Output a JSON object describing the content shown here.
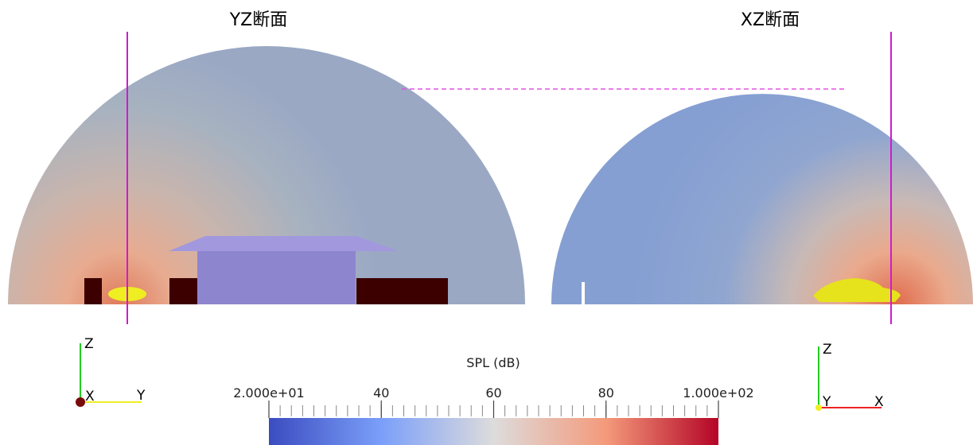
{
  "views": [
    {
      "title": "YZ断面",
      "axes": {
        "up": "Z",
        "origin": "X",
        "right": "Y"
      }
    },
    {
      "title": "XZ断面",
      "axes": {
        "up": "Z",
        "origin": "Y",
        "right": "X"
      }
    }
  ],
  "colorbar": {
    "title": "SPL (dB)",
    "range": [
      20,
      100
    ],
    "ticks": [
      {
        "value": 20,
        "label": "2.000e+01"
      },
      40,
      60,
      80,
      {
        "value": 100,
        "label": "1.000e+02"
      }
    ]
  }
}
